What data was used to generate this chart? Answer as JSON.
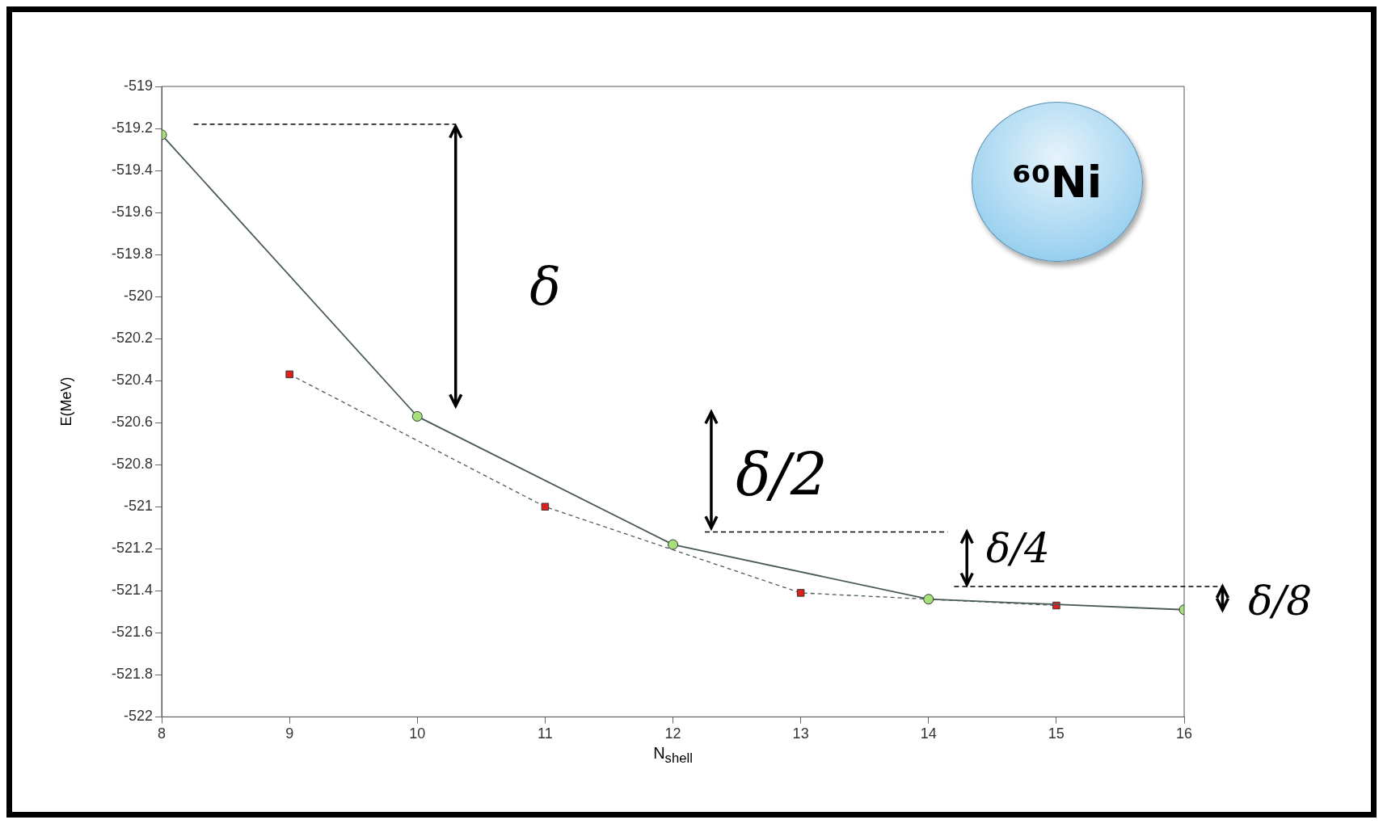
{
  "chart_data": {
    "type": "line",
    "xlabel": "N$_{shell}$",
    "ylabel": "E(MeV)",
    "xlim": [
      8,
      16
    ],
    "xticks": [
      8,
      9,
      10,
      11,
      12,
      13,
      14,
      15,
      16
    ],
    "ylim": [
      -522,
      -519
    ],
    "yticks": [
      -522,
      -521.8,
      -521.6,
      -521.4,
      -521.2,
      -521,
      -520.8,
      -520.6,
      -520.4,
      -520.2,
      -520,
      -519.8,
      -519.6,
      -519.4,
      -519.2,
      -519
    ],
    "legend": false,
    "series": [
      {
        "color": "#a6e07a",
        "x": [
          8,
          10,
          12,
          14,
          16
        ],
        "values": [
          -519.23,
          -520.57,
          -521.18,
          -521.44,
          -521.49
        ],
        "marker": "circle",
        "line_style": "solid"
      },
      {
        "color": "#e0201b",
        "x": [
          9,
          11,
          13,
          15
        ],
        "values": [
          -520.37,
          -521.0,
          -521.41,
          -521.47
        ],
        "marker": "square",
        "line_style": "dashed"
      }
    ],
    "annotations": [
      "⁶⁰Ni",
      "δ",
      "δ/2",
      "δ/4",
      "δ/8"
    ]
  }
}
